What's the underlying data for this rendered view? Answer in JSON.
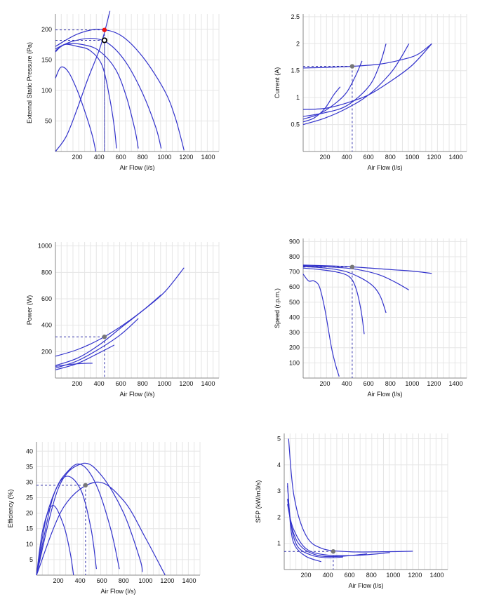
{
  "chart_data": [
    {
      "type": "line",
      "id": "pressure",
      "xlabel": "Air Flow (l/s)",
      "ylabel": "External Static Pressure (Pa)",
      "xlim": [
        0,
        1500
      ],
      "ylim": [
        0,
        225
      ],
      "xticks": [
        200,
        400,
        600,
        800,
        1000,
        1200,
        1400
      ],
      "yticks": [
        50,
        100,
        150,
        200
      ],
      "color": "#3333cc",
      "guide_color": "#3333aa",
      "series": [
        {
          "points": [
            [
              0,
              120
            ],
            [
              50,
              138
            ],
            [
              120,
              130
            ],
            [
              200,
              100
            ],
            [
              280,
              60
            ],
            [
              340,
              25
            ],
            [
              370,
              0
            ]
          ]
        },
        {
          "points": [
            [
              0,
              163
            ],
            [
              80,
              175
            ],
            [
              200,
              172
            ],
            [
              320,
              165
            ],
            [
              430,
              140
            ],
            [
              500,
              85
            ],
            [
              540,
              40
            ],
            [
              560,
              5
            ]
          ]
        },
        {
          "points": [
            [
              0,
              165
            ],
            [
              100,
              176
            ],
            [
              250,
              175
            ],
            [
              400,
              165
            ],
            [
              550,
              135
            ],
            [
              650,
              90
            ],
            [
              730,
              35
            ],
            [
              760,
              5
            ]
          ]
        },
        {
          "points": [
            [
              0,
              168
            ],
            [
              150,
              180
            ],
            [
              350,
              185
            ],
            [
              500,
              175
            ],
            [
              650,
              145
            ],
            [
              800,
              95
            ],
            [
              920,
              40
            ],
            [
              970,
              5
            ]
          ]
        },
        {
          "points": [
            [
              0,
              172
            ],
            [
              200,
              192
            ],
            [
              400,
              200
            ],
            [
              600,
              190
            ],
            [
              800,
              155
            ],
            [
              1000,
              100
            ],
            [
              1100,
              55
            ],
            [
              1180,
              2
            ]
          ]
        },
        {
          "points": [
            [
              0,
              0
            ],
            [
              100,
              25
            ],
            [
              200,
              70
            ],
            [
              300,
              120
            ],
            [
              400,
              165
            ],
            [
              450,
              195
            ],
            [
              500,
              230
            ]
          ]
        }
      ],
      "operating_point": {
        "x": 450,
        "y": 199,
        "color": "#ee1111"
      },
      "required_point": {
        "x": 450,
        "y": 182
      },
      "guides": [
        [
          450,
          199
        ],
        [
          450,
          182
        ]
      ]
    },
    {
      "type": "line",
      "id": "current",
      "xlabel": "Air Flow (l/s)",
      "ylabel": "Current (A)",
      "xlim": [
        0,
        1500
      ],
      "ylim": [
        0,
        2.55
      ],
      "xticks": [
        200,
        400,
        600,
        800,
        1000,
        1200,
        1400
      ],
      "yticks": [
        0.5,
        1,
        1.5,
        2,
        2.5
      ],
      "color": "#3333cc",
      "guide_color": "#3333aa",
      "series": [
        {
          "points": [
            [
              0,
              0.55
            ],
            [
              100,
              0.62
            ],
            [
              200,
              0.8
            ],
            [
              280,
              1.05
            ],
            [
              340,
              1.2
            ]
          ]
        },
        {
          "points": [
            [
              0,
              0.6
            ],
            [
              150,
              0.7
            ],
            [
              300,
              0.9
            ],
            [
              400,
              1.1
            ],
            [
              480,
              1.4
            ],
            [
              540,
              1.68
            ]
          ]
        },
        {
          "points": [
            [
              0,
              0.65
            ],
            [
              200,
              0.72
            ],
            [
              400,
              0.85
            ],
            [
              600,
              1.2
            ],
            [
              700,
              1.6
            ],
            [
              760,
              2.0
            ]
          ]
        },
        {
          "points": [
            [
              0,
              0.5
            ],
            [
              200,
              0.62
            ],
            [
              400,
              0.8
            ],
            [
              600,
              1.05
            ],
            [
              800,
              1.45
            ],
            [
              900,
              1.75
            ],
            [
              970,
              2.0
            ]
          ]
        },
        {
          "points": [
            [
              0,
              0.78
            ],
            [
              200,
              0.8
            ],
            [
              400,
              0.9
            ],
            [
              600,
              1.05
            ],
            [
              800,
              1.3
            ],
            [
              1000,
              1.6
            ],
            [
              1180,
              2.0
            ]
          ]
        },
        {
          "points": [
            [
              0,
              1.55
            ],
            [
              200,
              1.56
            ],
            [
              450,
              1.58
            ],
            [
              700,
              1.62
            ],
            [
              900,
              1.7
            ],
            [
              1050,
              1.8
            ],
            [
              1180,
              2.0
            ]
          ]
        }
      ],
      "operating_point": {
        "x": 450,
        "y": 1.58,
        "color": "#777777"
      },
      "guides": [
        [
          450,
          1.58
        ]
      ]
    },
    {
      "type": "line",
      "id": "power",
      "xlabel": "Air Flow (l/s)",
      "ylabel": "Power (W)",
      "xlim": [
        0,
        1500
      ],
      "ylim": [
        0,
        1030
      ],
      "xticks": [
        200,
        400,
        600,
        800,
        1000,
        1200,
        1400
      ],
      "yticks": [
        200,
        400,
        600,
        800,
        1000
      ],
      "color": "#3333cc",
      "guide_color": "#3333aa",
      "series": [
        {
          "points": [
            [
              0,
              88
            ],
            [
              100,
              100
            ],
            [
              200,
              108
            ],
            [
              300,
              112
            ],
            [
              340,
              112
            ]
          ]
        },
        {
          "points": [
            [
              0,
              62
            ],
            [
              200,
              110
            ],
            [
              400,
              190
            ],
            [
              540,
              250
            ]
          ]
        },
        {
          "points": [
            [
              0,
              75
            ],
            [
              200,
              130
            ],
            [
              400,
              220
            ],
            [
              600,
              330
            ],
            [
              760,
              450
            ]
          ]
        },
        {
          "points": [
            [
              0,
              95
            ],
            [
              200,
              150
            ],
            [
              400,
              250
            ],
            [
              600,
              380
            ],
            [
              800,
              510
            ],
            [
              970,
              630
            ]
          ]
        },
        {
          "points": [
            [
              0,
              165
            ],
            [
              200,
              215
            ],
            [
              400,
              290
            ],
            [
              600,
              390
            ],
            [
              800,
              510
            ],
            [
              1000,
              650
            ],
            [
              1180,
              835
            ]
          ]
        }
      ],
      "operating_point": {
        "x": 450,
        "y": 312,
        "color": "#777777"
      },
      "guides": [
        [
          450,
          312
        ]
      ]
    },
    {
      "type": "line",
      "id": "speed",
      "xlabel": "Air Flow (l/s)",
      "ylabel": "Speed (r.p.m.)",
      "xlim": [
        0,
        1500
      ],
      "ylim": [
        0,
        920
      ],
      "xticks": [
        200,
        400,
        600,
        800,
        1000,
        1200,
        1400
      ],
      "yticks": [
        100,
        200,
        300,
        400,
        500,
        600,
        700,
        800,
        900
      ],
      "color": "#3333cc",
      "guide_color": "#3333aa",
      "series": [
        {
          "points": [
            [
              0,
              685
            ],
            [
              50,
              640
            ],
            [
              100,
              640
            ],
            [
              150,
              600
            ],
            [
              200,
              450
            ],
            [
              260,
              200
            ],
            [
              300,
              80
            ],
            [
              330,
              10
            ]
          ]
        },
        {
          "points": [
            [
              0,
              725
            ],
            [
              150,
              715
            ],
            [
              300,
              700
            ],
            [
              420,
              670
            ],
            [
              480,
              600
            ],
            [
              530,
              450
            ],
            [
              560,
              290
            ]
          ]
        },
        {
          "points": [
            [
              0,
              735
            ],
            [
              200,
              725
            ],
            [
              400,
              700
            ],
            [
              600,
              630
            ],
            [
              700,
              550
            ],
            [
              760,
              430
            ]
          ]
        },
        {
          "points": [
            [
              0,
              740
            ],
            [
              300,
              730
            ],
            [
              500,
              715
            ],
            [
              700,
              680
            ],
            [
              850,
              630
            ],
            [
              970,
              580
            ]
          ]
        },
        {
          "points": [
            [
              0,
              745
            ],
            [
              400,
              735
            ],
            [
              800,
              715
            ],
            [
              1000,
              705
            ],
            [
              1180,
              690
            ]
          ]
        }
      ],
      "operating_point": {
        "x": 450,
        "y": 732,
        "color": "#777777"
      },
      "guides": [
        [
          450,
          732
        ]
      ]
    },
    {
      "type": "line",
      "id": "efficiency",
      "xlabel": "Air Flow (l/s)",
      "ylabel": "Efficiency (%)",
      "xlim": [
        0,
        1500
      ],
      "ylim": [
        0,
        43
      ],
      "xticks": [
        200,
        400,
        600,
        800,
        1000,
        1200,
        1400
      ],
      "yticks": [
        5,
        10,
        15,
        20,
        25,
        30,
        35,
        40
      ],
      "color": "#3333cc",
      "guide_color": "#3333aa",
      "series": [
        {
          "points": [
            [
              0,
              0
            ],
            [
              60,
              15
            ],
            [
              150,
              22.5
            ],
            [
              250,
              16
            ],
            [
              310,
              7
            ],
            [
              340,
              0
            ]
          ]
        },
        {
          "points": [
            [
              0,
              0
            ],
            [
              100,
              20
            ],
            [
              250,
              31.5
            ],
            [
              400,
              28
            ],
            [
              500,
              15
            ],
            [
              550,
              2
            ]
          ]
        },
        {
          "points": [
            [
              0,
              0
            ],
            [
              150,
              25
            ],
            [
              300,
              34
            ],
            [
              420,
              35.5
            ],
            [
              550,
              29
            ],
            [
              680,
              15
            ],
            [
              760,
              2
            ]
          ]
        },
        {
          "points": [
            [
              0,
              0
            ],
            [
              200,
              28
            ],
            [
              420,
              36
            ],
            [
              600,
              32
            ],
            [
              800,
              20
            ],
            [
              950,
              5
            ],
            [
              970,
              1
            ]
          ]
        },
        {
          "points": [
            [
              0,
              0
            ],
            [
              250,
              22
            ],
            [
              550,
              30
            ],
            [
              800,
              24
            ],
            [
              1000,
              12
            ],
            [
              1180,
              0
            ]
          ]
        }
      ],
      "operating_point": {
        "x": 450,
        "y": 29,
        "color": "#777777"
      },
      "guides": [
        [
          450,
          29
        ]
      ]
    },
    {
      "type": "line",
      "id": "sfp",
      "xlabel": "Air Flow (l/s)",
      "ylabel": "SFP (kW/m3/s)",
      "xlim": [
        0,
        1500
      ],
      "ylim": [
        0,
        5.2
      ],
      "xticks": [
        200,
        400,
        600,
        800,
        1000,
        1200,
        1400
      ],
      "yticks": [
        1,
        2,
        3,
        4,
        5
      ],
      "color": "#3333cc",
      "guide_color": "#3333aa",
      "series": [
        {
          "points": [
            [
              30,
              3.3
            ],
            [
              60,
              1.6
            ],
            [
              100,
              0.9
            ],
            [
              200,
              0.5
            ],
            [
              340,
              0.3
            ]
          ]
        },
        {
          "points": [
            [
              30,
              3.2
            ],
            [
              60,
              1.8
            ],
            [
              120,
              0.9
            ],
            [
              250,
              0.55
            ],
            [
              400,
              0.45
            ],
            [
              540,
              0.48
            ]
          ]
        },
        {
          "points": [
            [
              30,
              2.7
            ],
            [
              70,
              1.6
            ],
            [
              150,
              0.9
            ],
            [
              300,
              0.55
            ],
            [
              500,
              0.5
            ],
            [
              760,
              0.6
            ]
          ]
        },
        {
          "points": [
            [
              30,
              2.5
            ],
            [
              80,
              1.6
            ],
            [
              200,
              0.8
            ],
            [
              400,
              0.55
            ],
            [
              700,
              0.55
            ],
            [
              970,
              0.65
            ]
          ]
        },
        {
          "points": [
            [
              40,
              5.0
            ],
            [
              90,
              2.8
            ],
            [
              200,
              1.3
            ],
            [
              350,
              0.8
            ],
            [
              600,
              0.68
            ],
            [
              900,
              0.68
            ],
            [
              1180,
              0.7
            ]
          ]
        }
      ],
      "operating_point": {
        "x": 450,
        "y": 0.69,
        "color": "#777777"
      },
      "guides": [
        [
          450,
          0.69
        ]
      ]
    }
  ]
}
